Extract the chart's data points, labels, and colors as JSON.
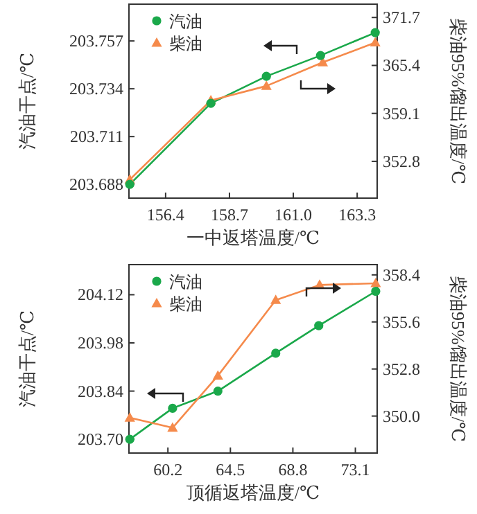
{
  "chart_data": [
    {
      "type": "line",
      "xlabel": "一中返塔温度/℃",
      "ylabel": "汽油干点/℃",
      "y2label": "柴油95%馏出温度/℃",
      "legend": "top left",
      "grid": false,
      "xlim": [
        155.08,
        164.02
      ],
      "xticks": [
        156.4,
        158.7,
        {
          "value": 161,
          "label": "161.0"
        },
        163.3
      ],
      "ylim": [
        203.6814,
        203.7747
      ],
      "yticks": [
        203.688,
        203.711,
        203.734,
        203.757
      ],
      "y2lim": [
        347.97,
        373.45
      ],
      "y2ticks": [
        352.8,
        359.1,
        365.4,
        371.7
      ],
      "series": [
        {
          "name": "汽油",
          "color": "#1aa84a",
          "marker": "circle",
          "x": [
            155.11,
            158.03,
            160.03,
            161.98,
            163.95
          ],
          "values": [
            203.688,
            203.727,
            203.74,
            203.75,
            203.761
          ]
        },
        {
          "name": "柴油",
          "color": "#f58a4b",
          "marker": "triangle",
          "axis": "y2",
          "x": [
            155.11,
            158.03,
            160.03,
            162.06,
            163.95
          ],
          "values": [
            350.4,
            360.8,
            362.7,
            365.8,
            368.4
          ]
        }
      ]
    },
    {
      "type": "line",
      "xlabel": "顶循返塔温度/℃",
      "ylabel": "汽油干点/℃",
      "y2label": "柴油95%馏出温度/℃",
      "legend": "top left",
      "grid": false,
      "xlim": [
        57.52,
        74.6
      ],
      "xticks": [
        60.2,
        64.5,
        68.8,
        73.1
      ],
      "ylim": [
        203.66,
        204.2075
      ],
      "yticks": [
        {
          "value": 203.7,
          "label": "203.70"
        },
        203.84,
        203.98,
        204.12
      ],
      "y2lim": [
        347.8,
        359.01
      ],
      "y2ticks": [
        {
          "value": 350,
          "label": "350.0"
        },
        352.8,
        355.6,
        358.4
      ],
      "series": [
        {
          "name": "汽油",
          "color": "#1aa84a",
          "marker": "circle",
          "x": [
            57.58,
            60.52,
            63.64,
            67.62,
            70.58,
            74.5
          ],
          "values": [
            203.7,
            203.79,
            203.84,
            203.95,
            204.03,
            204.13
          ]
        },
        {
          "name": "柴油",
          "color": "#f58a4b",
          "marker": "triangle",
          "axis": "y2",
          "x": [
            57.58,
            60.52,
            63.64,
            67.62,
            70.64,
            74.5
          ],
          "values": [
            349.9,
            349.3,
            352.4,
            356.9,
            357.8,
            357.9
          ]
        }
      ]
    }
  ]
}
